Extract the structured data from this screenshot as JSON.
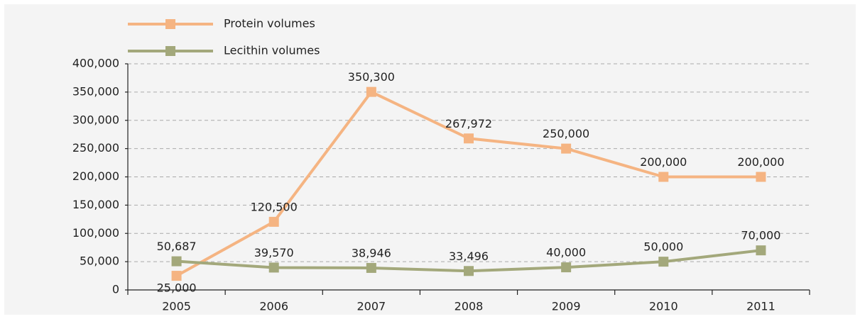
{
  "chart_data": {
    "type": "line",
    "categories": [
      "2005",
      "2006",
      "2007",
      "2008",
      "2009",
      "2010",
      "2011"
    ],
    "series": [
      {
        "name": "Protein volumes",
        "color": "#f5b482",
        "values": [
          25000,
          120500,
          350300,
          267972,
          250000,
          200000,
          200000
        ],
        "value_labels": [
          "25,000",
          "120,500",
          "350,300",
          "267,972",
          "250,000",
          "200,000",
          "200,000"
        ]
      },
      {
        "name": "Lecithin volumes",
        "color": "#a3a87b",
        "values": [
          50687,
          39570,
          38946,
          33496,
          40000,
          50000,
          70000
        ],
        "value_labels": [
          "50,687",
          "39,570",
          "38,946",
          "33,496",
          "40,000",
          "50,000",
          "70,000"
        ]
      }
    ],
    "ylim": [
      0,
      400000
    ],
    "yticks": [
      0,
      {
        "value": 50000,
        "label": "50,000"
      },
      {
        "value": 100000,
        "label": "100,000"
      },
      {
        "value": 150000,
        "label": "150,000"
      },
      {
        "value": 200000,
        "label": "200,000"
      },
      {
        "value": 250000,
        "label": "250,000"
      },
      {
        "value": 300000,
        "label": "300,000"
      },
      {
        "value": 350000,
        "label": "350,000"
      },
      {
        "value": 400000,
        "label": "400,000"
      }
    ],
    "grid": true
  }
}
